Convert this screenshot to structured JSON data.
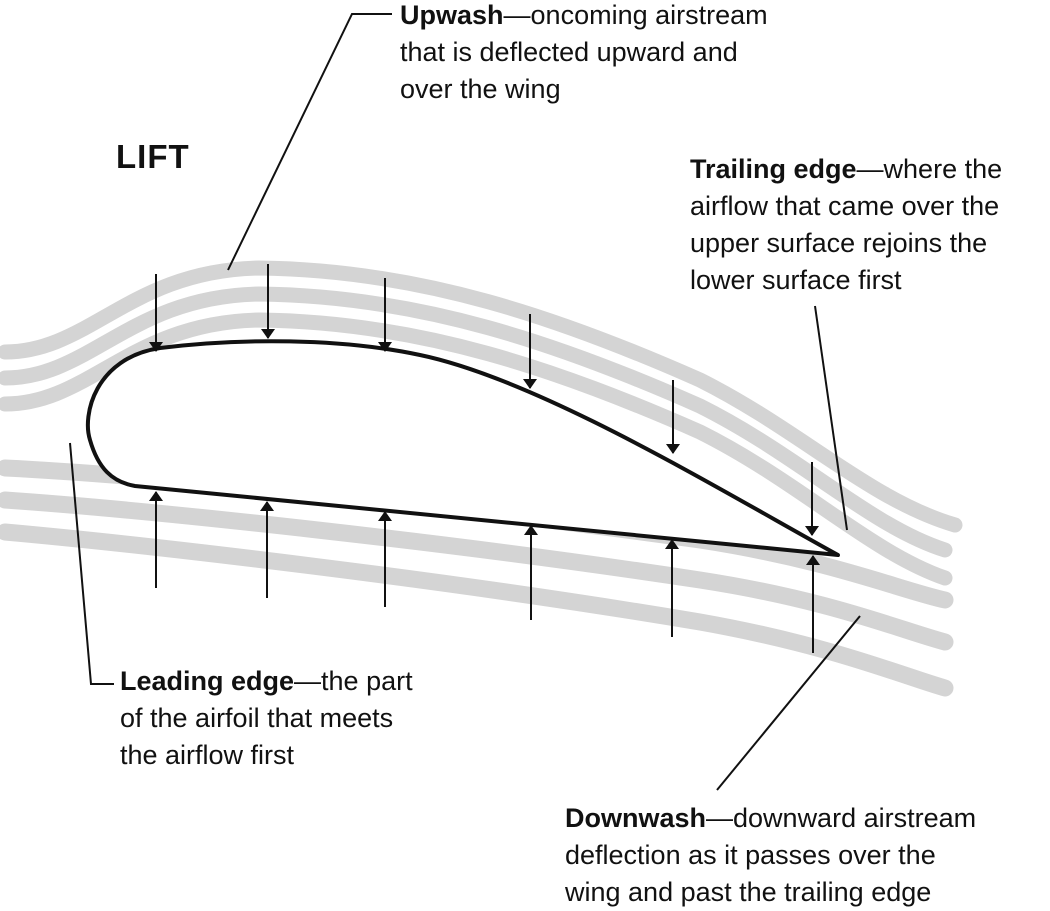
{
  "title": "LIFT",
  "colors": {
    "airstream": "#d4d4d4",
    "ink": "#111111",
    "background": "#ffffff"
  },
  "labels": {
    "upwash": {
      "term": "Upwash",
      "dash": "—",
      "lines": [
        "oncoming airstream",
        "that is deflected upward and",
        "over the wing"
      ]
    },
    "trailing_edge": {
      "term": "Trailing edge",
      "dash": "—",
      "lines": [
        "where the",
        "airflow that came over the",
        "upper surface rejoins the",
        "lower surface first"
      ]
    },
    "leading_edge": {
      "term": "Leading edge",
      "dash": "—",
      "lines": [
        "the part",
        "of the airfoil that meets",
        "the airflow first"
      ]
    },
    "downwash": {
      "term": "Downwash",
      "dash": "—",
      "lines": [
        "downward airstream",
        "deflection as it passes over the",
        "wing and past the trailing edge"
      ]
    }
  }
}
